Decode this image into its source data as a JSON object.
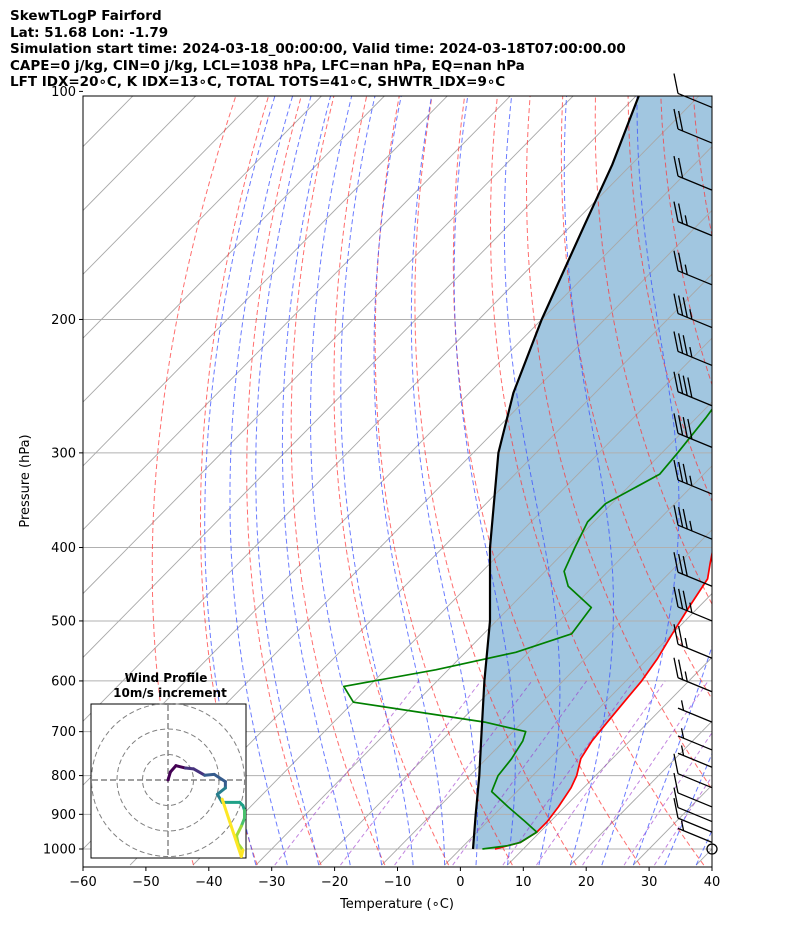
{
  "header": {
    "line1": "SkewTLogP Fairford",
    "line2": "Lat: 51.68   Lon: -1.79",
    "line3": "Simulation start time: 2024-03-18_00:00:00, Valid time: 2024-03-18T07:00:00.00",
    "line4": "CAPE=0 j/kg, CIN=0 j/kg, LCL=1038 hPa, LFC=nan hPa, EQ=nan hPa",
    "line5": "LFT IDX=20∘C, K IDX=13∘C, TOTAL TOTS=41∘C, SHWTR_IDX=9∘C"
  },
  "chart_data": {
    "type": "line",
    "subtype": "skew-T log-P",
    "xlabel": "Temperature (∘C)",
    "ylabel": "Pressure (hPa)",
    "xlim": [
      -60,
      40
    ],
    "ylim": [
      1050,
      100
    ],
    "x_ticks": [
      "−60",
      "−50",
      "−40",
      "−30",
      "−20",
      "−10",
      "0",
      "10",
      "20",
      "30",
      "40"
    ],
    "y_ticks": [
      "100",
      "200",
      "300",
      "400",
      "500",
      "600",
      "700",
      "800",
      "900",
      "1000"
    ],
    "y_scale": "log",
    "grid": true,
    "series": [
      {
        "role": "temperature",
        "color": "#ff0000",
        "points": [
          [
            5.5,
            1000
          ],
          [
            8.5,
            980
          ],
          [
            9.5,
            950
          ],
          [
            9.5,
            920
          ],
          [
            9,
            880
          ],
          [
            8,
            830
          ],
          [
            7,
            800
          ],
          [
            5,
            760
          ],
          [
            4,
            720
          ],
          [
            3.5,
            680
          ],
          [
            3,
            640
          ],
          [
            2.5,
            600
          ],
          [
            1.5,
            560
          ],
          [
            0,
            520
          ],
          [
            -1.5,
            480
          ],
          [
            -3,
            440
          ],
          [
            -5,
            420
          ],
          [
            -7,
            400
          ],
          [
            -9,
            380
          ],
          [
            -11,
            360
          ],
          [
            -13,
            340
          ],
          [
            -15,
            320
          ],
          [
            -17,
            300
          ],
          [
            -18.5,
            290
          ],
          [
            -20.5,
            270
          ],
          [
            -22.5,
            250
          ],
          [
            -24,
            230
          ],
          [
            -25.5,
            215
          ],
          [
            -26.5,
            200
          ],
          [
            -26.5,
            190
          ],
          [
            -26,
            180
          ],
          [
            -26,
            170
          ],
          [
            -26,
            160
          ],
          [
            -26,
            150
          ],
          [
            -27.5,
            140
          ],
          [
            -31,
            130
          ],
          [
            -36,
            120
          ],
          [
            -39,
            115
          ],
          [
            -40.5,
            110
          ],
          [
            -41.5,
            105
          ],
          [
            -43,
            100
          ]
        ]
      },
      {
        "role": "dewpoint",
        "color": "#008000",
        "points": [
          [
            3.5,
            1000
          ],
          [
            7,
            990
          ],
          [
            8.5,
            980
          ],
          [
            9.5,
            950
          ],
          [
            6,
            920
          ],
          [
            1,
            880
          ],
          [
            -4,
            840
          ],
          [
            -5.5,
            800
          ],
          [
            -6,
            760
          ],
          [
            -7,
            720
          ],
          [
            -8,
            700
          ],
          [
            -16,
            680
          ],
          [
            -40,
            640
          ],
          [
            -44,
            610
          ],
          [
            -32,
            580
          ],
          [
            -22,
            550
          ],
          [
            -16,
            520
          ],
          [
            -17,
            480
          ],
          [
            -24,
            450
          ],
          [
            -27,
            430
          ],
          [
            -29,
            400
          ],
          [
            -31,
            370
          ],
          [
            -31,
            350
          ],
          [
            -27,
            320
          ],
          [
            -27.5,
            300
          ],
          [
            -28.5,
            270
          ],
          [
            -30,
            240
          ],
          [
            -31,
            220
          ],
          [
            -31,
            200
          ],
          [
            -32,
            190
          ],
          [
            -34.5,
            175
          ],
          [
            -36.5,
            165
          ],
          [
            -35,
            155
          ],
          [
            -34,
            140
          ],
          [
            -33,
            130
          ],
          [
            -31.5,
            120
          ],
          [
            -30,
            110
          ],
          [
            -29,
            105
          ],
          [
            -28.5,
            100
          ]
        ]
      },
      {
        "role": "parcel profile",
        "color": "#000000",
        "points": [
          [
            2,
            1000
          ],
          [
            -3,
            900
          ],
          [
            -8.5,
            800
          ],
          [
            -15,
            700
          ],
          [
            -22.5,
            600
          ],
          [
            -31,
            500
          ],
          [
            -42.5,
            400
          ],
          [
            -56,
            300
          ],
          [
            -63,
            250
          ],
          [
            -70,
            200
          ],
          [
            -78,
            150
          ],
          [
            -83,
            125
          ],
          [
            -90,
            100
          ]
        ]
      }
    ],
    "winds": [
      {
        "pressure": 1000,
        "barbs": "calm"
      },
      {
        "pressure": 980,
        "barbs": "5 kt"
      },
      {
        "pressure": 950,
        "barbs": "10 kt"
      },
      {
        "pressure": 920,
        "barbs": "10 kt"
      },
      {
        "pressure": 880,
        "barbs": "10 kt"
      },
      {
        "pressure": 830,
        "barbs": "10 kt"
      },
      {
        "pressure": 780,
        "barbs": "5 kt"
      },
      {
        "pressure": 740,
        "barbs": "5 kt"
      },
      {
        "pressure": 680,
        "barbs": "5 kt"
      },
      {
        "pressure": 620,
        "barbs": "25 kt"
      },
      {
        "pressure": 560,
        "barbs": "25 kt"
      },
      {
        "pressure": 500,
        "barbs": "35 kt"
      },
      {
        "pressure": 450,
        "barbs": "30 kt"
      },
      {
        "pressure": 390,
        "barbs": "35 kt"
      },
      {
        "pressure": 340,
        "barbs": "35 kt"
      },
      {
        "pressure": 295,
        "barbs": "40 kt"
      },
      {
        "pressure": 260,
        "barbs": "40 kt"
      },
      {
        "pressure": 230,
        "barbs": "35 kt"
      },
      {
        "pressure": 205,
        "barbs": "35 kt"
      },
      {
        "pressure": 180,
        "barbs": "25 kt"
      },
      {
        "pressure": 155,
        "barbs": "25 kt"
      },
      {
        "pressure": 135,
        "barbs": "20 kt"
      },
      {
        "pressure": 117,
        "barbs": "20 kt"
      },
      {
        "pressure": 105,
        "barbs": "10 kt"
      }
    ]
  },
  "inset": {
    "title": "Wind Profile",
    "subtitle": "10m/s increment",
    "hodograph_points": [
      [
        0,
        0
      ],
      [
        0.15,
        0.5
      ],
      [
        0.5,
        0.9
      ],
      [
        1.1,
        0.75
      ],
      [
        1.6,
        0.7
      ],
      [
        2.3,
        0.3
      ],
      [
        2.9,
        0.35
      ],
      [
        3.6,
        -0.1
      ],
      [
        3.6,
        -0.5
      ],
      [
        3.1,
        -0.9
      ],
      [
        3.4,
        -1.4
      ],
      [
        4.5,
        -1.4
      ],
      [
        4.7,
        -1.6
      ],
      [
        4.8,
        -1.9
      ],
      [
        4.8,
        -2.4
      ],
      [
        4.6,
        -2.9
      ],
      [
        4.3,
        -3.5
      ],
      [
        4.4,
        -4.0
      ],
      [
        4.7,
        -4.4
      ],
      [
        4.6,
        -4.8
      ],
      [
        3.4,
        -1.2
      ]
    ],
    "colors": [
      "#440154",
      "#46327e",
      "#365c8d",
      "#277f8e",
      "#1fa187",
      "#4ac16d",
      "#a0da39",
      "#fde725"
    ]
  }
}
